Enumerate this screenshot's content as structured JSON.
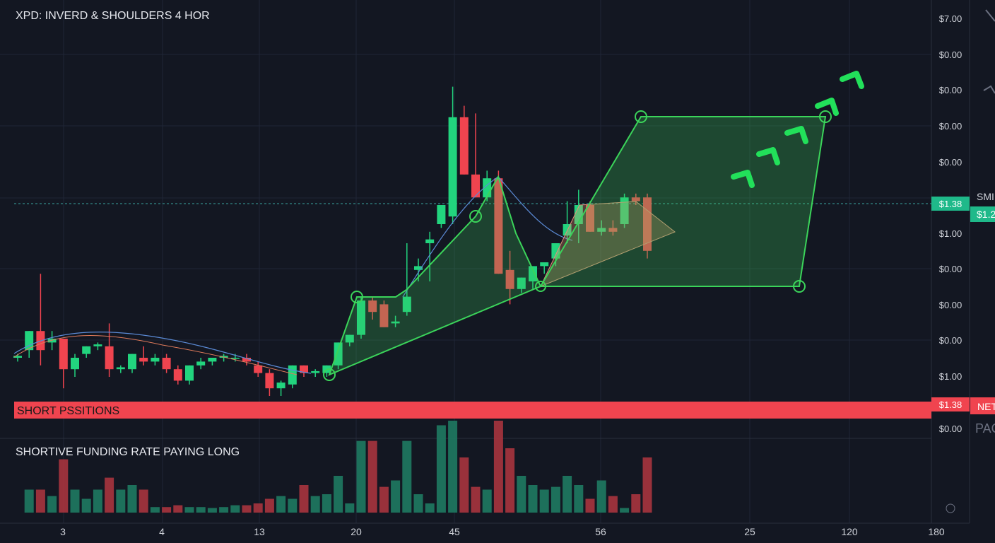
{
  "header": {
    "title": "XPD: INVERD & SHOULDERS 4 HOR"
  },
  "chart_data": {
    "type": "candlestick",
    "ylim": [
      0,
      100
    ],
    "colors": {
      "up": "#22d47e",
      "down": "#f0444f"
    },
    "open": [
      10,
      12,
      17,
      14,
      15,
      7,
      11,
      13,
      13,
      7,
      7,
      10,
      9,
      10,
      7,
      4,
      8,
      9,
      10,
      10,
      10,
      8,
      6,
      2,
      3,
      8,
      6,
      6,
      8,
      14,
      16,
      25,
      24,
      19,
      22,
      33,
      40,
      45,
      47,
      73,
      58,
      52,
      57,
      33,
      28,
      30,
      34,
      36,
      42,
      45,
      50,
      43,
      44,
      45,
      52,
      52
    ],
    "high": [
      11,
      17,
      32,
      17,
      15,
      11,
      13,
      14,
      19,
      8,
      11,
      13,
      11,
      11,
      8,
      8,
      10,
      10,
      11,
      11,
      11,
      9,
      7,
      4,
      8,
      8,
      7,
      8,
      14,
      16,
      26,
      26,
      25,
      21,
      40,
      36,
      43,
      50,
      81,
      76,
      74,
      59,
      59,
      38,
      31,
      34,
      35,
      40,
      51,
      54,
      51,
      46,
      46,
      53,
      53,
      53
    ],
    "low": [
      9,
      10,
      8,
      12,
      2,
      5,
      10,
      12,
      5,
      6,
      6,
      8,
      8,
      6,
      3,
      3,
      7,
      8,
      9,
      9,
      8,
      5,
      0,
      0,
      2,
      5,
      5,
      5,
      7,
      13,
      15,
      20,
      18,
      18,
      21,
      30,
      30,
      44,
      45,
      58,
      52,
      51,
      32,
      24,
      27,
      28,
      32,
      34,
      40,
      40,
      43,
      42,
      42,
      44,
      50,
      36
    ],
    "close": [
      10.5,
      17,
      12,
      15,
      7,
      10,
      13,
      13.5,
      7,
      7.5,
      11,
      9,
      10,
      7,
      4,
      8,
      9,
      10,
      10.5,
      10,
      9,
      6,
      2,
      3.5,
      8,
      6,
      6.5,
      8,
      14,
      16,
      25,
      22,
      18,
      19.5,
      26,
      34,
      41,
      50,
      73,
      58,
      52,
      57,
      32,
      28,
      31,
      34,
      35,
      40,
      45,
      50,
      43,
      44,
      43,
      52,
      51,
      38
    ]
  },
  "volume": {
    "ylim": [
      0,
      100
    ],
    "values": [
      0,
      25,
      25,
      18,
      58,
      25,
      15,
      25,
      38,
      25,
      30,
      25,
      6,
      6,
      8,
      6,
      6,
      5,
      6,
      8,
      8,
      10,
      15,
      18,
      15,
      30,
      18,
      20,
      40,
      10,
      78,
      78,
      28,
      35,
      78,
      20,
      10,
      95,
      100,
      60,
      28,
      25,
      100,
      70,
      40,
      30,
      25,
      28,
      40,
      30,
      15,
      35,
      18,
      5,
      20,
      60
    ]
  },
  "price_scale": [
    "$7.00",
    "$0.00",
    "$0.00",
    "$0.00",
    "$0.00",
    "$1.00",
    "$0.00",
    "$0.00",
    "$0.00",
    "$1.00"
  ],
  "price_scale_bottom": "$0.00",
  "price_badge": "$1.38",
  "banner": {
    "label": "SHORT PSSITIONS",
    "price": "$1.38"
  },
  "volume_title": "SHORTIVE FUNDING RATE PAYING LONG",
  "x_labels": [
    "3",
    "4",
    "13",
    "20",
    "45",
    "56",
    "25",
    "120",
    "180"
  ],
  "cut_labels": [
    "SMI",
    "$1.2",
    "NET",
    "PAC"
  ]
}
